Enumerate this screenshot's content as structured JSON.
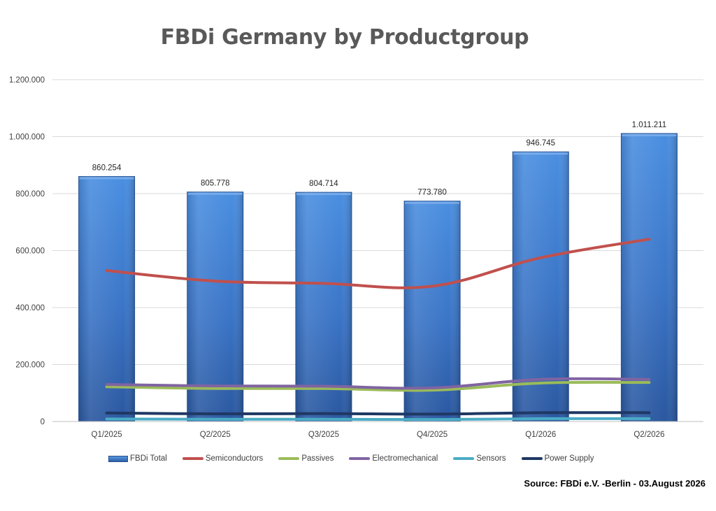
{
  "chart_data": {
    "type": "bar",
    "title": "FBDi Germany by Productgroup",
    "categories": [
      "Q1/2025",
      "Q2/2025",
      "Q3/2025",
      "Q4/2025",
      "Q1/2026",
      "Q2/2026"
    ],
    "series": [
      {
        "name": "FBDi Total",
        "kind": "bar",
        "color": "#3a77cc",
        "values": [
          860254,
          805778,
          804714,
          773780,
          946745,
          1011211
        ],
        "labels": [
          "860.254",
          "805.778",
          "804.714",
          "773.780",
          "946.745",
          "1.011.211"
        ]
      },
      {
        "name": "Semiconductors",
        "kind": "line",
        "color": "#c0504d",
        "values": [
          530000,
          493000,
          485000,
          475000,
          575000,
          640000
        ]
      },
      {
        "name": "Passives",
        "kind": "line",
        "color": "#9bbb59",
        "values": [
          122000,
          116000,
          116000,
          110000,
          135000,
          137000
        ]
      },
      {
        "name": "Electromechanical",
        "kind": "line",
        "color": "#8064a2",
        "values": [
          130000,
          125000,
          124000,
          118000,
          148000,
          148000
        ]
      },
      {
        "name": "Sensors",
        "kind": "line",
        "color": "#4bacc6",
        "values": [
          9000,
          8000,
          8000,
          7000,
          10000,
          10000
        ]
      },
      {
        "name": "Power Supply",
        "kind": "line",
        "color": "#1f3864",
        "values": [
          30000,
          27000,
          28000,
          26000,
          31000,
          31000
        ]
      }
    ],
    "ylim": [
      0,
      1200000
    ],
    "yticks": [
      0,
      200000,
      400000,
      600000,
      800000,
      1000000,
      1200000
    ],
    "ytick_labels": [
      "0",
      "200.000",
      "400.000",
      "600.000",
      "800.000",
      "1.000.000",
      "1.200.000"
    ],
    "grid": true,
    "legend_position": "bottom",
    "xlabel": "",
    "ylabel": ""
  },
  "source": "Source: FBDi e.V. -Berlin - 03.August 2026"
}
